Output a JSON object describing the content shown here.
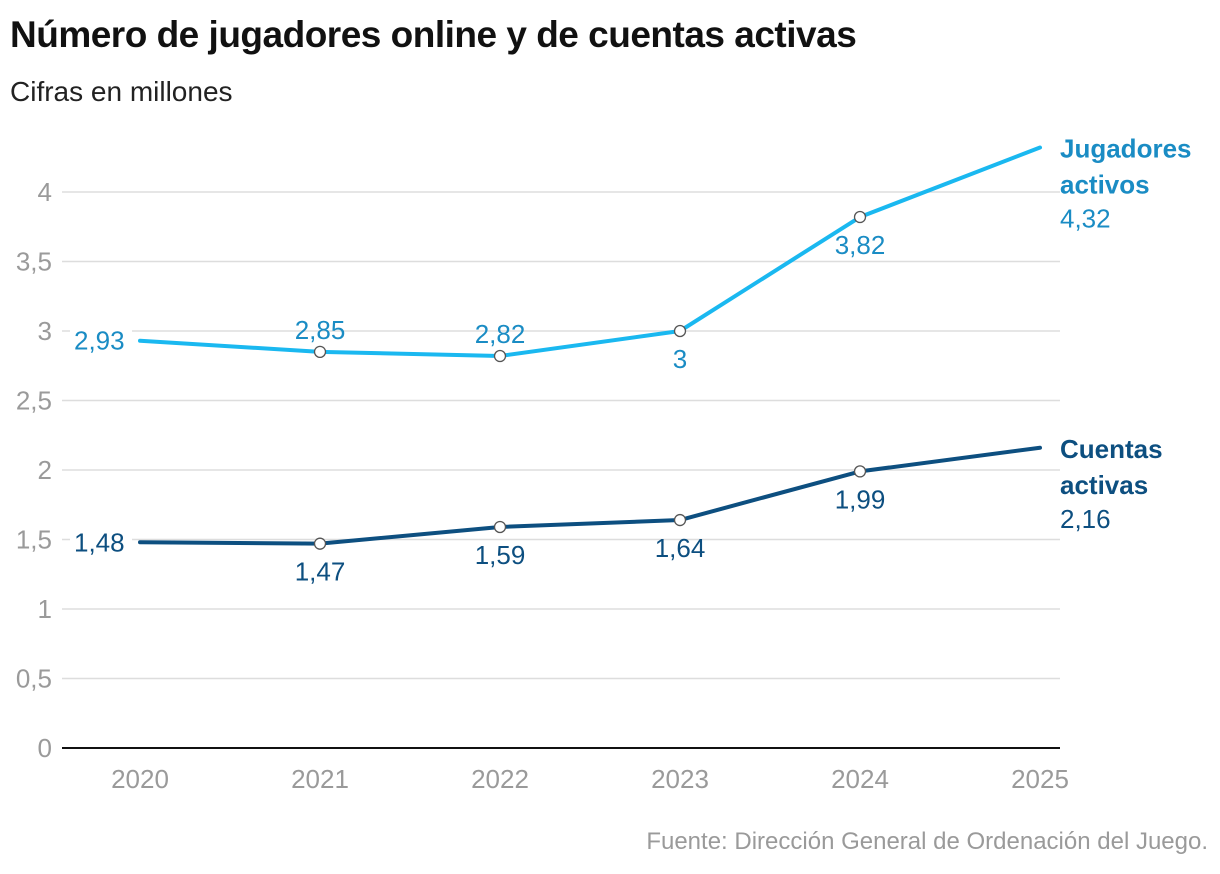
{
  "title": "Número de jugadores online y de cuentas activas",
  "subtitle": "Cifras en millones",
  "source": "Fuente: Dirección General de Ordenación del Juego.",
  "colors": {
    "jugadores": "#1ab8f0",
    "jugadores_text": "#1a8cc4",
    "cuentas": "#0d4f80",
    "cuentas_text": "#0d4f80",
    "grid": "#dddddd",
    "axis": "#111111",
    "tick": "#9a9a9a"
  },
  "chart_data": {
    "type": "line",
    "title": "Número de jugadores online y de cuentas activas",
    "subtitle": "Cifras en millones",
    "xlabel": "",
    "ylabel": "",
    "x": [
      "2020",
      "2021",
      "2022",
      "2023",
      "2024",
      "2025"
    ],
    "ylim": [
      0,
      4.5
    ],
    "yticks": [
      0,
      0.5,
      1,
      1.5,
      2,
      2.5,
      3,
      3.5,
      4
    ],
    "ytick_labels": [
      "0",
      "0,5",
      "1",
      "1,5",
      "2",
      "2,5",
      "3",
      "3,5",
      "4"
    ],
    "grid": true,
    "series": [
      {
        "key": "jugadores",
        "name": "Jugadores activos",
        "name_lines": [
          "Jugadores",
          "activos"
        ],
        "values": [
          2.93,
          2.85,
          2.82,
          3,
          3.82,
          4.32
        ],
        "labels": [
          "2,93",
          "2,85",
          "2,82",
          "3",
          "3,82",
          "4,32"
        ]
      },
      {
        "key": "cuentas",
        "name": "Cuentas activas",
        "name_lines": [
          "Cuentas",
          "activas"
        ],
        "values": [
          1.48,
          1.47,
          1.59,
          1.64,
          1.99,
          2.16
        ],
        "labels": [
          "1,48",
          "1,47",
          "1,59",
          "1,64",
          "1,99",
          "2,16"
        ]
      }
    ]
  }
}
